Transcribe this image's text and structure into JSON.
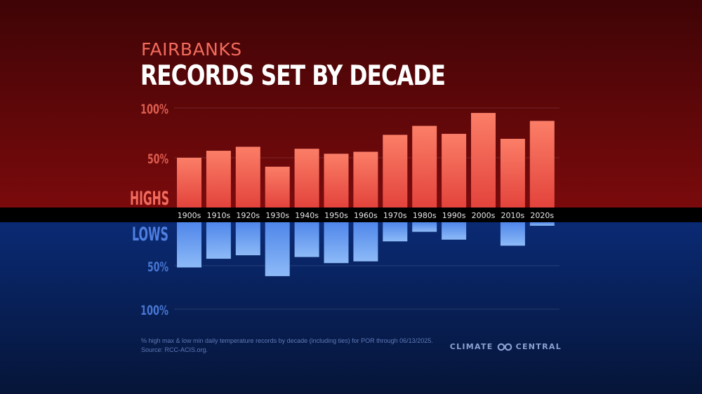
{
  "subtitle": "FAIRBANKS",
  "title": "RECORDS SET BY DECADE",
  "highs_label": "HIGHS",
  "lows_label": "LOWS",
  "footnote": {
    "line1": "% high max & low min daily temperature records by decade (including ties) for POR through 06/13/2025.",
    "line2": "Source: RCC-ACIS.org."
  },
  "brand": {
    "left": "CLIMATE",
    "right": "CENTRAL",
    "logo_icon": "infinity-logo-icon"
  },
  "colors": {
    "highs_bg_top": "#3f0406",
    "highs_bg_bottom": "#7a0a0c",
    "lows_bg_top": "#0a2a74",
    "lows_bg_bottom": "#061538",
    "high_bar_top": "#fb7e67",
    "high_bar_bottom": "#e3433c",
    "low_bar_top": "#4f86ea",
    "low_bar_bottom": "#8dbaf7",
    "highs_text": "#f26b5c",
    "lows_text": "#4f7fe0",
    "band": "#000000"
  },
  "chart_data": {
    "type": "bar",
    "title": "RECORDS SET BY DECADE",
    "subtitle": "FAIRBANKS",
    "categories": [
      "1900s",
      "1910s",
      "1920s",
      "1930s",
      "1940s",
      "1950s",
      "1960s",
      "1970s",
      "1980s",
      "1990s",
      "2000s",
      "2010s",
      "2020s"
    ],
    "series": [
      {
        "name": "HIGHS",
        "values": [
          50,
          57,
          61,
          41,
          59,
          54,
          56,
          73,
          82,
          74,
          95,
          69,
          87
        ]
      },
      {
        "name": "LOWS",
        "values": [
          52,
          42,
          38,
          62,
          40,
          47,
          45,
          22,
          11,
          20,
          0,
          27,
          4
        ]
      }
    ],
    "yticks_highs": [
      "50%",
      "100%"
    ],
    "yticks_lows": [
      "50%",
      "100%"
    ],
    "ylim": [
      0,
      100
    ],
    "ylabel": "%",
    "xlabel": ""
  }
}
